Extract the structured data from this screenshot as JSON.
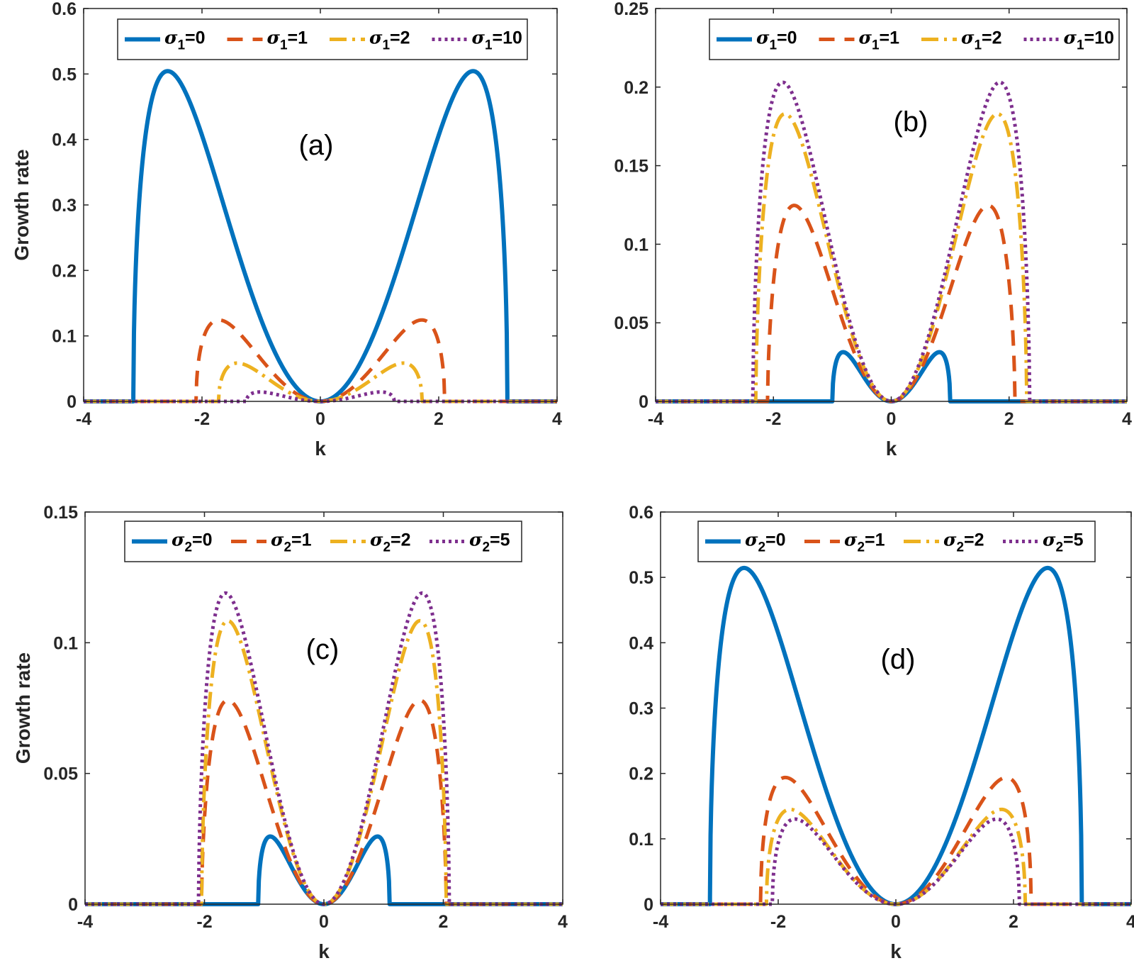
{
  "colors": {
    "s0": "#0072BD",
    "s1": "#D95319",
    "s2": "#EDB120",
    "s3": "#7E2F8E",
    "axis": "#262626"
  },
  "chart_data": [
    {
      "type": "line",
      "panel_label": "(a)",
      "xlabel": "k",
      "ylabel": "Growth rate",
      "xlim": [
        -4,
        4
      ],
      "ylim": [
        0,
        0.6
      ],
      "xticks": [
        "-4",
        "-2",
        "0",
        "2",
        "4"
      ],
      "yticks": [
        "0",
        "0.1",
        "0.2",
        "0.3",
        "0.4",
        "0.5",
        "0.6"
      ],
      "legend": {
        "placement": "top",
        "symbol": "σ",
        "subscript": "1",
        "entries": [
          "=0",
          "=1",
          "=2",
          "=10"
        ]
      },
      "series": [
        {
          "style": "solid",
          "color": "s0",
          "k_cut": 3.16,
          "k_peak": 2.65,
          "peak": 0.502,
          "p": 2
        },
        {
          "style": "dashed",
          "color": "s1",
          "k_cut": 2.1,
          "k_peak": 1.75,
          "peak": 0.124,
          "p": 2
        },
        {
          "style": "dashdot",
          "color": "s2",
          "k_cut": 1.72,
          "k_peak": 1.35,
          "peak": 0.058,
          "p": 2
        },
        {
          "style": "dotted",
          "color": "s3",
          "k_cut": 1.25,
          "k_peak": 0.95,
          "peak": 0.014,
          "p": 2
        }
      ]
    },
    {
      "type": "line",
      "panel_label": "(b)",
      "xlabel": "k",
      "ylabel": "",
      "xlim": [
        -4,
        4
      ],
      "ylim": [
        0,
        0.25
      ],
      "xticks": [
        "-4",
        "-2",
        "0",
        "2",
        "4"
      ],
      "yticks": [
        "0",
        "0.05",
        "0.1",
        "0.15",
        "0.2",
        "0.25"
      ],
      "legend": {
        "placement": "top",
        "symbol": "σ",
        "subscript": "1",
        "entries": [
          "=0",
          "=1",
          "=2",
          "=10"
        ]
      },
      "series": [
        {
          "style": "solid",
          "color": "s0",
          "k_cut": 1.0,
          "k_peak": 0.78,
          "peak": 0.031,
          "p": 2
        },
        {
          "style": "dashed",
          "color": "s1",
          "k_cut": 2.1,
          "k_peak": 1.7,
          "peak": 0.124,
          "p": 1.6
        },
        {
          "style": "dashdot",
          "color": "s2",
          "k_cut": 2.3,
          "k_peak": 1.9,
          "peak": 0.18,
          "p": 1.6
        },
        {
          "style": "dotted",
          "color": "s3",
          "k_cut": 2.35,
          "k_peak": 1.9,
          "peak": 0.202,
          "p": 1.6
        }
      ]
    },
    {
      "type": "line",
      "panel_label": "(c)",
      "xlabel": "k",
      "ylabel": "Growth rate",
      "xlim": [
        -4,
        4
      ],
      "ylim": [
        0,
        0.15
      ],
      "xticks": [
        "-4",
        "-2",
        "0",
        "2",
        "4"
      ],
      "yticks": [
        "0",
        "0.05",
        "0.1",
        "0.15"
      ],
      "legend": {
        "placement": "top",
        "symbol": "σ",
        "subscript": "2",
        "entries": [
          "=0",
          "=1",
          "=2",
          "=5"
        ]
      },
      "series": [
        {
          "style": "solid",
          "color": "s0",
          "k_cut": 1.1,
          "k_peak": 0.85,
          "peak": 0.0255,
          "p": 2
        },
        {
          "style": "dashed",
          "color": "s1",
          "k_cut": 2.05,
          "k_peak": 1.6,
          "peak": 0.078,
          "p": 1.6
        },
        {
          "style": "dashdot",
          "color": "s2",
          "k_cut": 2.05,
          "k_peak": 1.65,
          "peak": 0.108,
          "p": 1.6
        },
        {
          "style": "dotted",
          "color": "s3",
          "k_cut": 2.1,
          "k_peak": 1.65,
          "peak": 0.119,
          "p": 1.6
        }
      ]
    },
    {
      "type": "line",
      "panel_label": "(d)",
      "xlabel": "k",
      "ylabel": "",
      "xlim": [
        -4,
        4
      ],
      "ylim": [
        0,
        0.6
      ],
      "xticks": [
        "-4",
        "-2",
        "0",
        "2",
        "4"
      ],
      "yticks": [
        "0",
        "0.1",
        "0.2",
        "0.3",
        "0.4",
        "0.5",
        "0.6"
      ],
      "legend": {
        "placement": "top",
        "symbol": "σ",
        "subscript": "2",
        "entries": [
          "=0",
          "=1",
          "=2",
          "=5"
        ]
      },
      "series": [
        {
          "style": "solid",
          "color": "s0",
          "k_cut": 3.16,
          "k_peak": 2.65,
          "peak": 0.512,
          "p": 2
        },
        {
          "style": "dashed",
          "color": "s1",
          "k_cut": 2.3,
          "k_peak": 1.8,
          "peak": 0.192,
          "p": 2
        },
        {
          "style": "dashdot",
          "color": "s2",
          "k_cut": 2.2,
          "k_peak": 1.8,
          "peak": 0.145,
          "p": 2
        },
        {
          "style": "dotted",
          "color": "s3",
          "k_cut": 2.1,
          "k_peak": 1.8,
          "peak": 0.128,
          "p": 2
        }
      ]
    }
  ]
}
